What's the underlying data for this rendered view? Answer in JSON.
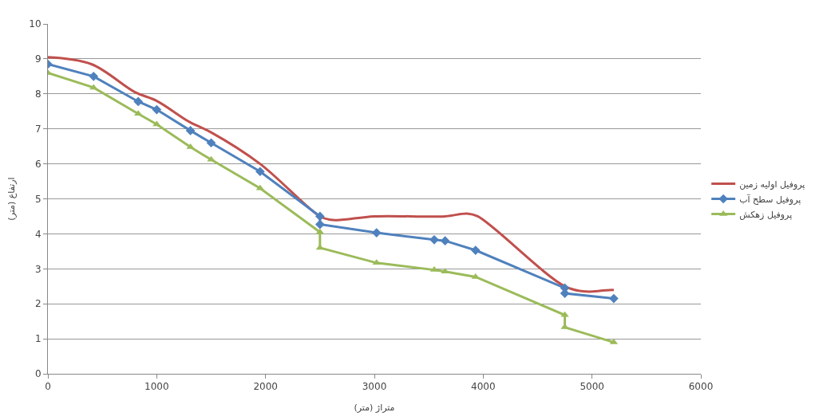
{
  "chart_data": {
    "type": "line",
    "xlabel": "متراژ (متر)",
    "ylabel": "ارتفاع (متر)",
    "xlim": [
      0,
      6000
    ],
    "xticks": [
      0,
      1000,
      2000,
      3000,
      4000,
      5000,
      6000
    ],
    "ylim": [
      0,
      10
    ],
    "yticks": [
      0,
      1,
      2,
      3,
      4,
      5,
      6,
      7,
      8,
      9,
      10
    ],
    "grid": "y",
    "legend": "right",
    "series": [
      {
        "name": "پروفیل اولیه زمین",
        "color": "#c0504d",
        "marker": "none",
        "x": [
          0,
          400,
          800,
          1000,
          1300,
          1500,
          1950,
          2500,
          2600,
          2700,
          3000,
          3650,
          3850,
          3950,
          4750,
          4950,
          5100,
          5200
        ],
        "values": [
          9.05,
          8.85,
          8.05,
          7.8,
          7.2,
          6.9,
          6.0,
          4.5,
          4.4,
          4.4,
          4.5,
          4.5,
          4.58,
          4.5,
          2.5,
          2.35,
          2.38,
          2.4
        ]
      },
      {
        "name": "پروفیل سطح آب",
        "color": "#4f81bd",
        "marker": "diamond",
        "x": [
          0,
          420,
          830,
          1000,
          1310,
          1500,
          1950,
          2500,
          2500,
          3020,
          3550,
          3650,
          3930,
          4750,
          4750,
          5200
        ],
        "values": [
          8.85,
          8.5,
          7.78,
          7.55,
          6.95,
          6.6,
          5.78,
          4.5,
          4.27,
          4.03,
          3.83,
          3.8,
          3.53,
          2.45,
          2.3,
          2.15
        ]
      },
      {
        "name": "پروفیل زهکش",
        "color": "#9bbb59",
        "marker": "triangle",
        "x": [
          0,
          420,
          830,
          1000,
          1310,
          1500,
          1950,
          2500,
          2500,
          3020,
          3550,
          3650,
          3930,
          4750,
          4750,
          5200
        ],
        "values": [
          8.6,
          8.18,
          7.43,
          7.13,
          6.48,
          6.12,
          5.3,
          4.05,
          3.6,
          3.17,
          2.97,
          2.92,
          2.77,
          1.68,
          1.33,
          0.9
        ]
      }
    ]
  }
}
